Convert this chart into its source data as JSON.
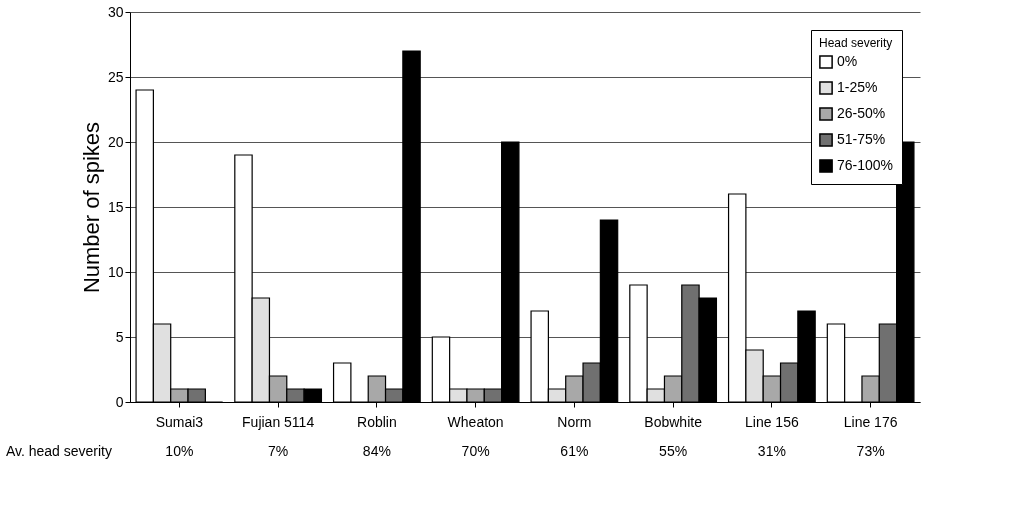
{
  "chart_data": {
    "type": "bar",
    "ylabel": "Number of spikes",
    "legend_title": "Head severity",
    "categories": [
      "Sumai3",
      "Fujian 5114",
      "Roblin",
      "Wheaton",
      "Norm",
      "Bobwhite",
      "Line 156",
      "Line 176"
    ],
    "series": [
      {
        "name": "0%",
        "color": "#ffffff",
        "values": [
          24,
          19,
          3,
          5,
          7,
          9,
          16,
          6
        ]
      },
      {
        "name": "1-25%",
        "color": "#e0e0e0",
        "values": [
          6,
          8,
          0,
          1,
          1,
          1,
          4,
          0
        ]
      },
      {
        "name": "26-50%",
        "color": "#a8a8a8",
        "values": [
          1,
          2,
          2,
          1,
          2,
          2,
          2,
          2
        ]
      },
      {
        "name": "51-75%",
        "color": "#707070",
        "values": [
          1,
          1,
          1,
          1,
          3,
          9,
          3,
          6
        ]
      },
      {
        "name": "76-100%",
        "color": "#000000",
        "values": [
          0,
          1,
          27,
          20,
          14,
          8,
          7,
          20
        ]
      }
    ],
    "ylim": [
      0,
      30
    ],
    "yticks": [
      0,
      5,
      10,
      15,
      20,
      25,
      30
    ],
    "grid": "y",
    "legend": "top right",
    "annotations": [
      "Av. head severity",
      "10%",
      "7%",
      "84%",
      "70%",
      "61%",
      "55%",
      "31%",
      "73%"
    ]
  }
}
